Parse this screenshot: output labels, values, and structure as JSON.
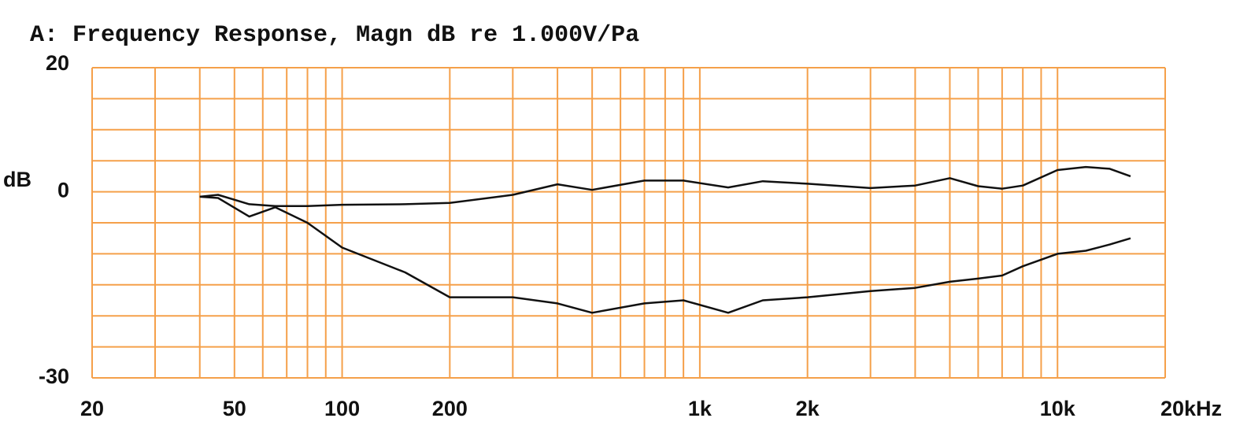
{
  "chart_data": {
    "type": "line",
    "title": "A: Frequency Response, Magn dB re 1.000V/Pa",
    "y_label": "dB",
    "xscale": "log",
    "xlim": [
      20,
      20000
    ],
    "xticks": [
      20,
      50,
      100,
      200,
      {
        "value": 1000,
        "label": "1k"
      },
      {
        "value": 2000,
        "label": "2k"
      },
      {
        "value": 10000,
        "label": "10k"
      },
      {
        "value": 20000,
        "label": "20kHz"
      }
    ],
    "ylim": [
      -30,
      20
    ],
    "yticks": [
      20,
      0,
      -30
    ],
    "grid": true,
    "grid_color": "#f5a04a",
    "x": [
      40,
      45,
      55,
      65,
      80,
      100,
      150,
      200,
      300,
      400,
      500,
      700,
      900,
      1200,
      1500,
      2000,
      3000,
      4000,
      5000,
      6000,
      7000,
      8000,
      10000,
      12000,
      14000,
      16000
    ],
    "series": [
      {
        "color": "#111111",
        "values": [
          -0.8,
          -0.5,
          -2,
          -2.3,
          -2.3,
          -2.1,
          -2,
          -1.8,
          -0.5,
          1.2,
          0.3,
          1.8,
          1.8,
          0.7,
          1.7,
          1.3,
          0.6,
          1,
          2.2,
          0.9,
          0.5,
          1,
          3.5,
          4,
          3.7,
          2.5
        ]
      },
      {
        "color": "#111111",
        "values": [
          -0.8,
          -1,
          -4,
          -2.5,
          -5,
          -9,
          -13,
          -17,
          -17,
          -18,
          -19.5,
          -18,
          -17.5,
          -19.5,
          -17.5,
          -17,
          -16,
          -15.5,
          -14.5,
          -14,
          -13.5,
          -12,
          -10,
          -9.5,
          -8.5,
          -7.5
        ]
      }
    ]
  }
}
